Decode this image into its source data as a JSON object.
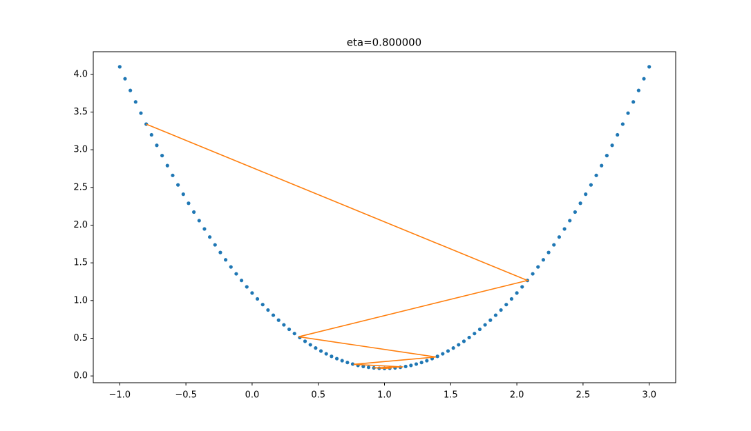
{
  "chart_data": {
    "type": "scatter",
    "title": "eta=0.800000",
    "xlim": [
      -1.2,
      3.2
    ],
    "ylim": [
      -0.09,
      4.3
    ],
    "xticks": [
      {
        "value": -1,
        "label": "−1.0"
      },
      {
        "value": -0.5,
        "label": "−0.5"
      },
      {
        "value": 0,
        "label": "0.0"
      },
      {
        "value": 0.5,
        "label": "0.5"
      },
      {
        "value": 1,
        "label": "1.0"
      },
      {
        "value": 1.5,
        "label": "1.5"
      },
      {
        "value": 2,
        "label": "2.0"
      },
      {
        "value": 2.5,
        "label": "2.5"
      },
      {
        "value": 3,
        "label": "3.0"
      }
    ],
    "yticks": [
      {
        "value": 0,
        "label": "0.0"
      },
      {
        "value": 0.5,
        "label": "0.5"
      },
      {
        "value": 1,
        "label": "1.0"
      },
      {
        "value": 1.5,
        "label": "1.5"
      },
      {
        "value": 2,
        "label": "2.0"
      },
      {
        "value": 2.5,
        "label": "2.5"
      },
      {
        "value": 3,
        "label": "3.0"
      },
      {
        "value": 3.5,
        "label": "3.5"
      },
      {
        "value": 4,
        "label": "4.0"
      }
    ],
    "series": [
      {
        "type": "scatter",
        "color": "#1f77b4",
        "x": [
          -1,
          -0.96,
          -0.92,
          -0.88,
          -0.84,
          -0.8,
          -0.76,
          -0.72,
          -0.68,
          -0.64,
          -0.6,
          -0.56,
          -0.52,
          -0.48,
          -0.44,
          -0.4,
          -0.36,
          -0.32,
          -0.28,
          -0.24,
          -0.2,
          -0.16,
          -0.12,
          -0.08,
          -0.04,
          0,
          0.04,
          0.08,
          0.12,
          0.16,
          0.2,
          0.24,
          0.28,
          0.32,
          0.36,
          0.4,
          0.44,
          0.48,
          0.52,
          0.56,
          0.6,
          0.64,
          0.68,
          0.72,
          0.76,
          0.8,
          0.84,
          0.88,
          0.92,
          0.96,
          1,
          1.04,
          1.08,
          1.12,
          1.16,
          1.2,
          1.24,
          1.28,
          1.32,
          1.36,
          1.4,
          1.44,
          1.48,
          1.52,
          1.56,
          1.6,
          1.64,
          1.68,
          1.72,
          1.76,
          1.8,
          1.84,
          1.88,
          1.92,
          1.96,
          2,
          2.04,
          2.08,
          2.12,
          2.16,
          2.2,
          2.24,
          2.28,
          2.32,
          2.36,
          2.4,
          2.44,
          2.48,
          2.52,
          2.56,
          2.6,
          2.64,
          2.68,
          2.72,
          2.76,
          2.8,
          2.84,
          2.88,
          2.92,
          2.96,
          3
        ],
        "values": [
          4.1,
          3.9416,
          3.7864,
          3.6344,
          3.4856,
          3.34,
          3.1976,
          3.0584,
          2.9224,
          2.7896,
          2.66,
          2.5336,
          2.4104,
          2.2904,
          2.1736,
          2.06,
          1.9496,
          1.8424,
          1.7384,
          1.6376,
          1.54,
          1.4456,
          1.3544,
          1.2664,
          1.1816,
          1.1,
          1.0216,
          0.9464,
          0.8744,
          0.8056,
          0.74,
          0.6776,
          0.6184,
          0.5624,
          0.5096,
          0.46,
          0.4136,
          0.3704,
          0.3304,
          0.2936,
          0.26,
          0.2296,
          0.2024,
          0.1784,
          0.1576,
          0.14,
          0.1256,
          0.1144,
          0.1064,
          0.1016,
          0.1,
          0.1016,
          0.1064,
          0.1144,
          0.1256,
          0.14,
          0.1576,
          0.1784,
          0.2024,
          0.2296,
          0.26,
          0.2936,
          0.3304,
          0.3704,
          0.4136,
          0.46,
          0.5096,
          0.5624,
          0.6184,
          0.6776,
          0.74,
          0.8056,
          0.8744,
          0.9464,
          1.0216,
          1.1,
          1.1816,
          1.2664,
          1.3544,
          1.4456,
          1.54,
          1.6376,
          1.7384,
          1.8424,
          1.9496,
          2.06,
          2.1736,
          2.2904,
          2.4104,
          2.5336,
          2.66,
          2.7896,
          2.9224,
          3.0584,
          3.1976,
          3.34,
          3.4856,
          3.6344,
          3.7864,
          3.9416,
          4.1
        ]
      },
      {
        "type": "line",
        "color": "#ff7f0e",
        "x": [
          -0.8,
          2.08,
          0.352,
          1.3888,
          0.7667,
          1.14,
          0.916,
          1.0504,
          0.9698,
          1.0181
        ],
        "values": [
          3.34,
          1.2664,
          0.5199,
          0.2512,
          0.1544,
          0.1196,
          0.1071,
          0.1025,
          0.1009,
          0.1003
        ]
      }
    ]
  }
}
